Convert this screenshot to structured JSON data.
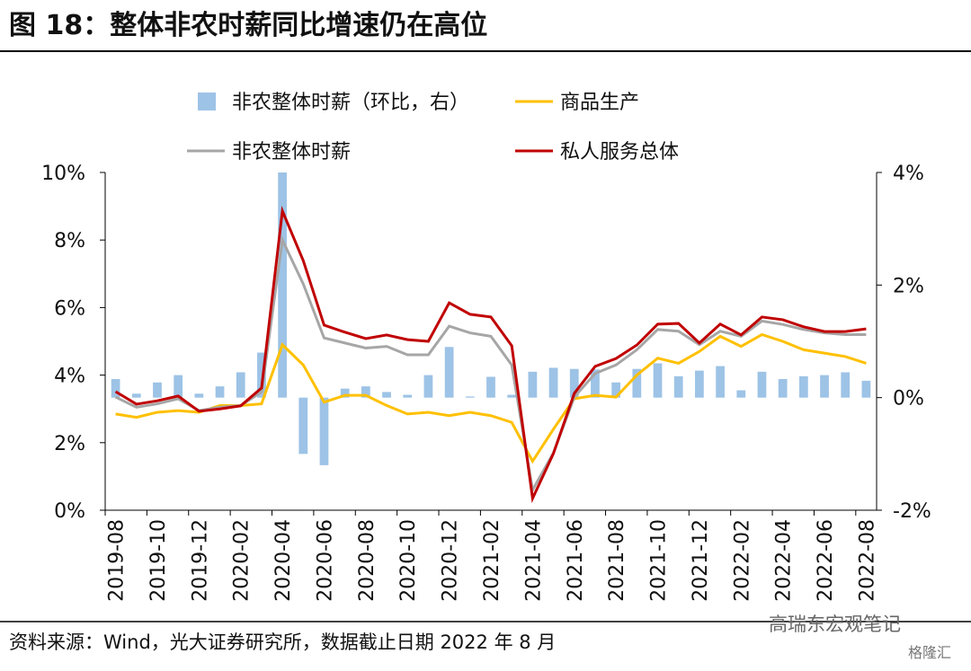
{
  "chart_data": {
    "type": "combo",
    "title": "图 18：整体非农时薪同比增速仍在高位",
    "source": "资料来源：Wind，光大证券研究所，数据截止日期 2022 年 8 月",
    "watermark": "高瑞东宏观笔记",
    "watermark2": "格隆汇",
    "categories": [
      "2019-08",
      null,
      "2019-10",
      null,
      "2019-12",
      null,
      "2020-02",
      null,
      "2020-04",
      null,
      "2020-06",
      null,
      "2020-08",
      null,
      "2020-10",
      null,
      "2020-12",
      null,
      "2021-02",
      null,
      "2021-04",
      null,
      "2021-06",
      null,
      "2021-08",
      null,
      "2021-10",
      null,
      "2021-12",
      null,
      "2022-02",
      null,
      "2022-04",
      null,
      "2022-06",
      null,
      "2022-08"
    ],
    "ylim": [
      0,
      10
    ],
    "yticks": [
      {
        "value": 0,
        "label": "0%"
      },
      {
        "value": 2,
        "label": "2%"
      },
      {
        "value": 4,
        "label": "4%"
      },
      {
        "value": 6,
        "label": "6%"
      },
      {
        "value": 8,
        "label": "8%"
      },
      {
        "value": 10,
        "label": "10%"
      }
    ],
    "y2lim": [
      -2,
      4
    ],
    "y2ticks": [
      {
        "value": -2,
        "label": "-2%"
      },
      {
        "value": 0,
        "label": "0%"
      },
      {
        "value": 2,
        "label": "2%"
      },
      {
        "value": 4,
        "label": "4%"
      }
    ],
    "series": [
      {
        "name": "非农整体时薪（环比，右）",
        "type": "bar",
        "axis": "y2",
        "color": "#9dc3e6",
        "values": [
          0.33,
          0.07,
          0.27,
          0.4,
          0.07,
          0.2,
          0.45,
          0.8,
          4.0,
          -1.0,
          -1.2,
          0.16,
          0.2,
          0.1,
          0.05,
          0.4,
          0.9,
          0.02,
          0.37,
          0.05,
          0.46,
          0.53,
          0.51,
          0.5,
          0.27,
          0.51,
          0.61,
          0.38,
          0.48,
          0.56,
          0.13,
          0.46,
          0.33,
          0.38,
          0.4,
          0.45,
          0.3
        ]
      },
      {
        "name": "商品生产",
        "type": "line",
        "color": "#ffc000",
        "values": [
          2.85,
          2.75,
          2.9,
          2.95,
          2.9,
          3.1,
          3.1,
          3.15,
          4.9,
          4.3,
          3.2,
          3.4,
          3.4,
          3.1,
          2.85,
          2.9,
          2.8,
          2.9,
          2.8,
          2.6,
          1.45,
          2.4,
          3.3,
          3.4,
          3.35,
          4.0,
          4.5,
          4.35,
          4.7,
          5.15,
          4.85,
          5.2,
          5.0,
          4.75,
          4.65,
          4.55,
          4.35
        ]
      },
      {
        "name": "非农整体时薪",
        "type": "line",
        "color": "#a6a6a6",
        "values": [
          3.35,
          3.05,
          3.15,
          3.3,
          2.95,
          3.05,
          3.1,
          3.5,
          8.0,
          6.7,
          5.1,
          4.95,
          4.8,
          4.85,
          4.6,
          4.6,
          5.45,
          5.25,
          5.15,
          4.3,
          0.6,
          1.7,
          3.35,
          4.05,
          4.3,
          4.75,
          5.35,
          5.3,
          4.9,
          5.3,
          5.15,
          5.6,
          5.5,
          5.35,
          5.25,
          5.2,
          5.2
        ]
      },
      {
        "name": "私人服务总体",
        "type": "line",
        "color": "#c00000",
        "values": [
          3.51,
          3.14,
          3.24,
          3.38,
          2.93,
          3.0,
          3.09,
          3.62,
          8.86,
          7.39,
          5.48,
          5.27,
          5.08,
          5.19,
          5.05,
          5.0,
          6.14,
          5.8,
          5.72,
          4.87,
          0.35,
          1.68,
          3.46,
          4.26,
          4.49,
          4.89,
          5.51,
          5.53,
          4.95,
          5.51,
          5.19,
          5.72,
          5.64,
          5.43,
          5.29,
          5.29,
          5.37
        ]
      }
    ]
  }
}
